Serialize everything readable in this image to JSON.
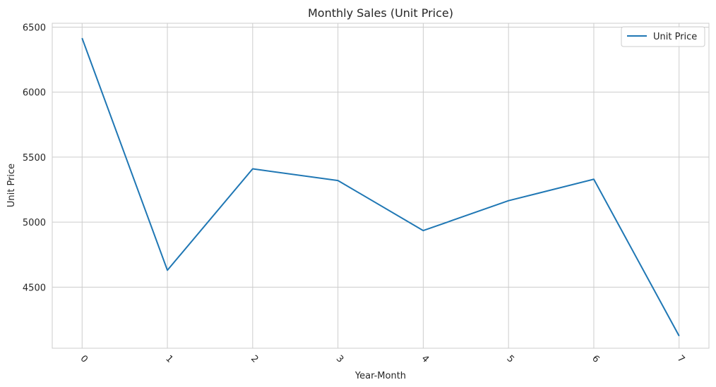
{
  "chart_data": {
    "type": "line",
    "title": "Monthly Sales (Unit Price)",
    "xlabel": "Year-Month",
    "ylabel": "Unit Price",
    "x": [
      0,
      1,
      2,
      3,
      4,
      5,
      6,
      7
    ],
    "x_tick_labels": [
      "0",
      "1",
      "2",
      "3",
      "4",
      "5",
      "6",
      "7"
    ],
    "y_ticks": [
      4500,
      5000,
      5500,
      6000,
      6500
    ],
    "y_tick_labels": [
      "4500",
      "5000",
      "5500",
      "6000",
      "6500"
    ],
    "ylim": [
      4030,
      6530
    ],
    "xlim": [
      -0.35,
      7.35
    ],
    "series": [
      {
        "name": "Unit Price",
        "color": "#1f77b4",
        "values": [
          6415,
          4630,
          5410,
          5320,
          4935,
          5165,
          5330,
          4125
        ]
      }
    ],
    "grid": true,
    "legend_position": "top-right",
    "x_tick_rotation_deg": 45
  }
}
